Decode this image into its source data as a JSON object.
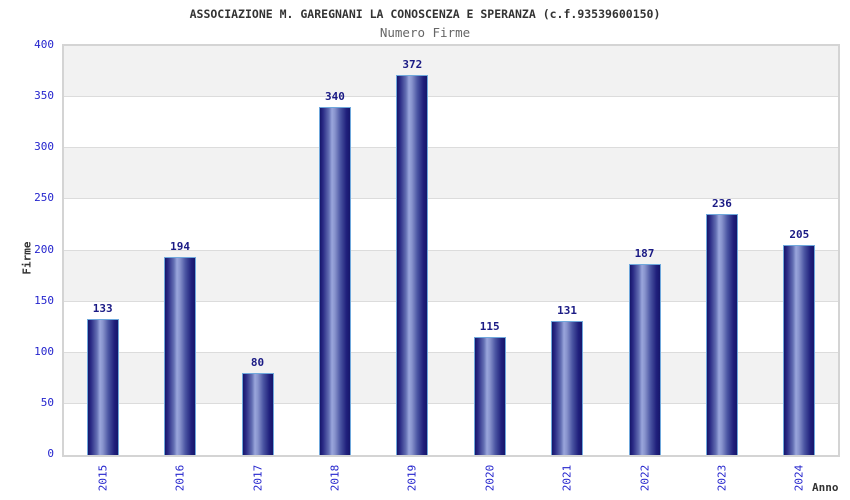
{
  "title": "ASSOCIAZIONE M. GAREGNANI LA CONOSCENZA E SPERANZA (c.f.93539600150)",
  "subtitle": "Numero Firme",
  "chart_data": {
    "type": "bar",
    "categories": [
      "2015",
      "2016",
      "2017",
      "2018",
      "2019",
      "2020",
      "2021",
      "2022",
      "2023",
      "2024"
    ],
    "values": [
      133,
      194,
      80,
      340,
      372,
      115,
      131,
      187,
      236,
      205
    ],
    "title": "ASSOCIAZIONE M. GAREGNANI LA CONOSCENZA E SPERANZA (c.f.93539600150)",
    "subtitle": "Numero Firme",
    "xlabel": "Anno",
    "ylabel": "Firme",
    "ylim": [
      0,
      400
    ],
    "ytick_step": 50,
    "ytick_labels": [
      "0",
      "50",
      "100",
      "150",
      "200",
      "250",
      "300",
      "350",
      "400"
    ],
    "legend": false,
    "grid": "horizontal-bands-alternating",
    "value_labels_shown": true,
    "colors": {
      "bar_gradient_dark": "#16166b",
      "bar_gradient_mid": "#4a55a2",
      "bar_gradient_light": "#9aa6dc",
      "bar_border": "#6fa8dc",
      "band_fill": "#f2f2f2",
      "band_alt_fill": "#ffffff",
      "gridline": "#dcdcdc",
      "plot_border": "#d4d4d4",
      "tick_label": "#2424cd",
      "value_label": "#1b1b85",
      "title_color": "#333333",
      "subtitle_color": "#666666",
      "axis_label_color": "#333333",
      "background": "#ffffff"
    }
  }
}
